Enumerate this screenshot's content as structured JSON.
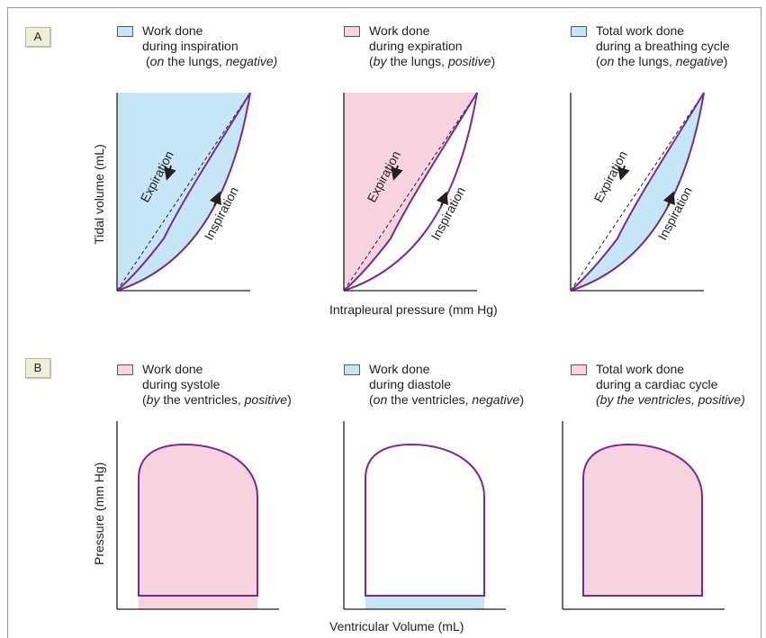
{
  "panel_a": {
    "tag": "A",
    "legends": [
      {
        "swatch": "blue",
        "line1": "Work done",
        "line2": "during inspiration",
        "line3_pre": "(",
        "line3_em1": "on",
        "line3_mid": " the lungs, ",
        "line3_em2": "negative)",
        "line3_post": ""
      },
      {
        "swatch": "pink",
        "line1": "Work done",
        "line2": "during expiration",
        "line3_pre": "(",
        "line3_em1": "by",
        "line3_mid": " the lungs, ",
        "line3_em2": "positive",
        "line3_post": ")"
      },
      {
        "swatch": "blue",
        "line1": "Total work done",
        "line2": "during a breathing cycle",
        "line3_pre": "(",
        "line3_em1": "on",
        "line3_mid": " the lungs, ",
        "line3_em2": "negative",
        "line3_post": ")"
      }
    ],
    "curve_labels": {
      "expiration": "Expiration",
      "inspiration": "Inspiration"
    },
    "y_axis_label": "Tidal volume (mL)",
    "x_axis_label": "Intrapleural pressure  (mm Hg)"
  },
  "panel_b": {
    "tag": "B",
    "legends": [
      {
        "swatch": "pink",
        "line1": "Work done",
        "line2": "during systole",
        "line3_pre": "(",
        "line3_em1": "by",
        "line3_mid": " the ventricles, ",
        "line3_em2": "positive",
        "line3_post": ")"
      },
      {
        "swatch": "blue",
        "line1": "Work done",
        "line2": "during diastole",
        "line3_pre": "(",
        "line3_em1": "on",
        "line3_mid": " the ventricles, ",
        "line3_em2": "negative",
        "line3_post": ")"
      },
      {
        "swatch": "pink",
        "line1": "Total work done",
        "line2": "during a cardiac cycle",
        "line3_pre": "(",
        "line3_em1": "by",
        "line3_mid": " the ventricles, ",
        "line3_em2": "positive",
        "line3_post": ")"
      }
    ],
    "y_axis_label": "Pressure (mm Hg)",
    "x_axis_label": "Ventricular Volume (mL)"
  },
  "colors": {
    "pink": "#f7d3e0",
    "blue": "#c6e6f5",
    "curve": "#7b2a8a",
    "axis": "#231f20"
  }
}
